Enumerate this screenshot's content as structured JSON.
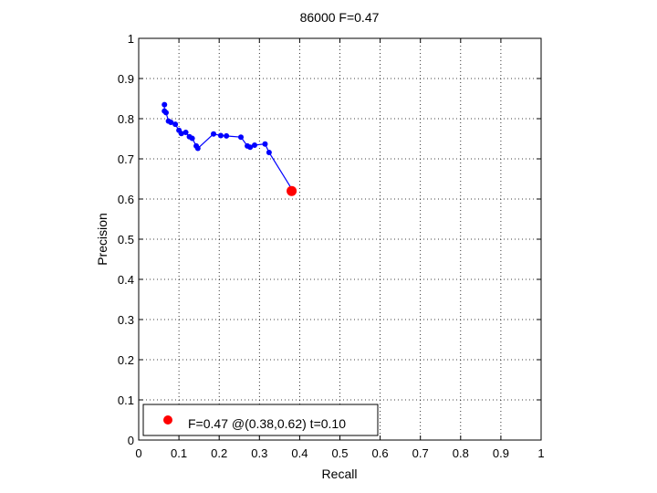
{
  "chart_data": {
    "type": "line",
    "title": "86000 F=0.47",
    "xlabel": "Recall",
    "ylabel": "Precision",
    "xlim": [
      0,
      1
    ],
    "ylim": [
      0,
      1
    ],
    "grid": true,
    "legend_position": "bottom-left",
    "xticks": [
      "0",
      "0.1",
      "0.2",
      "0.3",
      "0.4",
      "0.5",
      "0.6",
      "0.7",
      "0.8",
      "0.9",
      "1"
    ],
    "yticks": [
      "0",
      "0.1",
      "0.2",
      "0.3",
      "0.4",
      "0.5",
      "0.6",
      "0.7",
      "0.8",
      "0.9",
      "1"
    ],
    "series": [
      {
        "color": "#0000ff",
        "marker": "dot",
        "x": [
          0.064,
          0.064,
          0.068,
          0.074,
          0.08,
          0.091,
          0.1,
          0.106,
          0.117,
          0.126,
          0.133,
          0.143,
          0.147,
          0.186,
          0.204,
          0.218,
          0.254,
          0.27,
          0.277,
          0.288,
          0.314,
          0.324,
          0.381
        ],
        "y": [
          0.835,
          0.819,
          0.815,
          0.794,
          0.791,
          0.786,
          0.771,
          0.763,
          0.766,
          0.755,
          0.751,
          0.732,
          0.726,
          0.762,
          0.758,
          0.757,
          0.754,
          0.732,
          0.729,
          0.734,
          0.737,
          0.716,
          0.624
        ]
      }
    ],
    "optimal_point": {
      "color": "#ff0000",
      "x": 0.38,
      "y": 0.62
    },
    "legend": [
      {
        "label": "F=0.47 @(0.38,0.62) t=0.10",
        "color": "#ff0000"
      }
    ]
  }
}
